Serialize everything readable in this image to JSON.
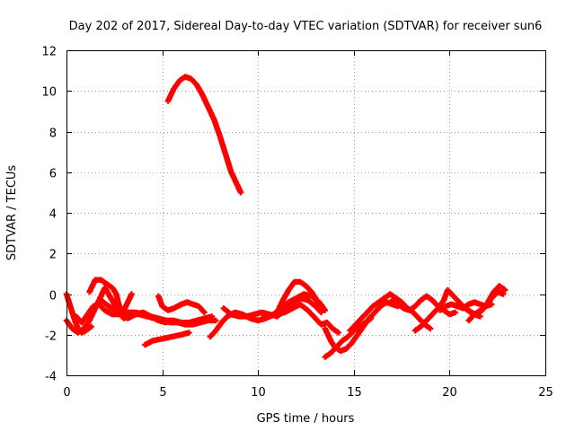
{
  "chart_data": {
    "type": "scatter",
    "title": "Day 202 of 2017, Sidereal Day-to-day VTEC variation (SDTVAR) for receiver sun6",
    "xlabel": "GPS time / hours",
    "ylabel": "SDTVAR / TECUs",
    "xlim": [
      0,
      25
    ],
    "ylim": [
      -4,
      12
    ],
    "xticks": [
      "0",
      "5",
      "10",
      "15",
      "20",
      "25"
    ],
    "yticks": [
      "-4",
      "-2",
      "0",
      "2",
      "4",
      "6",
      "8",
      "10",
      "12"
    ],
    "grid": true,
    "marker": "plus",
    "color": "#ff0000",
    "series": [
      {
        "name": "SDTVAR",
        "segments": [
          [
            [
              0.0,
              0.0
            ],
            [
              0.2,
              -0.6
            ],
            [
              0.4,
              -1.2
            ],
            [
              0.6,
              -1.7
            ],
            [
              0.8,
              -1.9
            ],
            [
              1.0,
              -1.8
            ],
            [
              1.3,
              -1.6
            ]
          ],
          [
            [
              0.0,
              -1.3
            ],
            [
              0.3,
              -1.7
            ],
            [
              0.6,
              -1.9
            ],
            [
              0.9,
              -1.7
            ],
            [
              1.2,
              -1.3
            ],
            [
              1.5,
              -0.7
            ],
            [
              1.8,
              -0.1
            ],
            [
              2.0,
              0.3
            ],
            [
              2.2,
              0.0
            ],
            [
              2.5,
              -0.5
            ],
            [
              2.8,
              -0.9
            ],
            [
              3.0,
              -0.8
            ],
            [
              3.2,
              -0.4
            ],
            [
              3.4,
              0.0
            ]
          ],
          [
            [
              0.5,
              -1.1
            ],
            [
              0.8,
              -1.4
            ],
            [
              1.1,
              -1.0
            ],
            [
              1.4,
              -0.6
            ],
            [
              1.7,
              -0.5
            ],
            [
              2.0,
              -0.8
            ],
            [
              2.4,
              -1.0
            ],
            [
              2.8,
              -1.0
            ],
            [
              3.2,
              -0.9
            ],
            [
              3.6,
              -0.9
            ],
            [
              4.0,
              -1.0
            ],
            [
              4.4,
              -1.1
            ],
            [
              4.8,
              -1.2
            ],
            [
              5.2,
              -1.3
            ],
            [
              5.6,
              -1.3
            ],
            [
              6.0,
              -1.4
            ],
            [
              6.4,
              -1.4
            ],
            [
              6.8,
              -1.3
            ],
            [
              7.2,
              -1.2
            ],
            [
              7.6,
              -1.1
            ]
          ],
          [
            [
              1.2,
              0.1
            ],
            [
              1.5,
              0.7
            ],
            [
              1.8,
              0.7
            ],
            [
              2.1,
              0.5
            ],
            [
              2.4,
              0.3
            ],
            [
              2.6,
              0.0
            ],
            [
              2.7,
              -0.4
            ],
            [
              2.9,
              -1.0
            ],
            [
              3.2,
              -1.2
            ],
            [
              3.6,
              -1.0
            ],
            [
              4.0,
              -0.9
            ],
            [
              4.4,
              -1.1
            ],
            [
              4.8,
              -1.3
            ],
            [
              5.2,
              -1.4
            ]
          ],
          [
            [
              1.8,
              -0.3
            ],
            [
              2.2,
              -0.6
            ],
            [
              2.6,
              -0.8
            ],
            [
              3.0,
              -1.2
            ],
            [
              3.4,
              -1.0
            ],
            [
              3.8,
              -1.0
            ],
            [
              4.2,
              -1.1
            ],
            [
              4.6,
              -1.2
            ],
            [
              5.0,
              -1.3
            ],
            [
              5.4,
              -1.4
            ],
            [
              5.8,
              -1.4
            ],
            [
              6.2,
              -1.5
            ],
            [
              6.6,
              -1.5
            ],
            [
              7.0,
              -1.4
            ],
            [
              7.4,
              -1.3
            ],
            [
              7.8,
              -1.3
            ]
          ],
          [
            [
              4.1,
              -2.5
            ],
            [
              4.5,
              -2.3
            ],
            [
              5.0,
              -2.2
            ],
            [
              5.5,
              -2.1
            ],
            [
              6.0,
              -2.0
            ],
            [
              6.4,
              -1.9
            ]
          ],
          [
            [
              4.8,
              -0.1
            ],
            [
              5.0,
              -0.6
            ],
            [
              5.3,
              -0.8
            ],
            [
              5.6,
              -0.7
            ],
            [
              6.0,
              -0.5
            ],
            [
              6.3,
              -0.4
            ],
            [
              6.6,
              -0.5
            ],
            [
              6.9,
              -0.6
            ],
            [
              7.2,
              -0.9
            ]
          ],
          [
            [
              5.3,
              9.5
            ],
            [
              5.6,
              10.1
            ],
            [
              5.9,
              10.5
            ],
            [
              6.2,
              10.7
            ],
            [
              6.5,
              10.6
            ],
            [
              6.8,
              10.3
            ],
            [
              7.1,
              9.8
            ],
            [
              7.4,
              9.2
            ],
            [
              7.7,
              8.6
            ],
            [
              8.0,
              7.8
            ],
            [
              8.3,
              6.9
            ],
            [
              8.6,
              6.0
            ],
            [
              8.8,
              5.6
            ],
            [
              9.0,
              5.2
            ],
            [
              9.1,
              5.0
            ]
          ],
          [
            [
              7.5,
              -2.1
            ],
            [
              7.8,
              -1.8
            ],
            [
              8.1,
              -1.4
            ],
            [
              8.4,
              -1.1
            ],
            [
              8.8,
              -0.9
            ],
            [
              9.2,
              -1.0
            ],
            [
              9.6,
              -1.2
            ],
            [
              10.0,
              -1.3
            ],
            [
              10.4,
              -1.2
            ],
            [
              10.8,
              -1.0
            ],
            [
              11.2,
              -0.7
            ],
            [
              11.6,
              -0.4
            ],
            [
              12.0,
              -0.2
            ],
            [
              12.4,
              0.0
            ],
            [
              12.8,
              -0.1
            ],
            [
              13.2,
              -0.4
            ],
            [
              13.5,
              -0.8
            ]
          ],
          [
            [
              8.2,
              -0.7
            ],
            [
              8.6,
              -1.0
            ],
            [
              9.0,
              -1.1
            ],
            [
              9.4,
              -1.1
            ],
            [
              9.8,
              -1.0
            ],
            [
              10.2,
              -0.9
            ],
            [
              10.6,
              -1.0
            ],
            [
              11.0,
              -1.1
            ],
            [
              11.4,
              -0.8
            ],
            [
              11.8,
              -0.4
            ],
            [
              12.2,
              -0.2
            ],
            [
              12.6,
              -0.3
            ],
            [
              13.0,
              -0.6
            ],
            [
              13.3,
              -0.9
            ]
          ],
          [
            [
              10.2,
              -1.2
            ],
            [
              10.6,
              -1.1
            ],
            [
              11.0,
              -1.0
            ],
            [
              11.4,
              -0.9
            ],
            [
              11.8,
              -0.7
            ],
            [
              12.2,
              -0.5
            ],
            [
              12.6,
              -0.8
            ],
            [
              13.0,
              -1.2
            ],
            [
              13.3,
              -1.5
            ],
            [
              13.6,
              -1.4
            ],
            [
              13.9,
              -1.7
            ],
            [
              14.2,
              -1.9
            ]
          ],
          [
            [
              11.0,
              -0.9
            ],
            [
              11.3,
              -0.3
            ],
            [
              11.6,
              0.2
            ],
            [
              11.9,
              0.6
            ],
            [
              12.2,
              0.6
            ],
            [
              12.5,
              0.4
            ],
            [
              12.8,
              0.1
            ],
            [
              13.0,
              -0.2
            ],
            [
              13.2,
              -0.6
            ]
          ],
          [
            [
              13.5,
              -1.7
            ],
            [
              13.8,
              -2.3
            ],
            [
              14.0,
              -2.6
            ],
            [
              14.3,
              -2.8
            ],
            [
              14.6,
              -2.7
            ],
            [
              14.9,
              -2.4
            ],
            [
              15.2,
              -2.0
            ],
            [
              15.5,
              -1.6
            ],
            [
              15.8,
              -1.2
            ],
            [
              16.1,
              -0.9
            ],
            [
              16.4,
              -0.6
            ],
            [
              16.7,
              -0.4
            ],
            [
              17.0,
              -0.5
            ],
            [
              17.3,
              -0.6
            ]
          ],
          [
            [
              13.5,
              -3.1
            ],
            [
              13.8,
              -2.9
            ],
            [
              14.1,
              -2.6
            ],
            [
              14.4,
              -2.3
            ],
            [
              14.7,
              -2.1
            ],
            [
              15.0,
              -1.8
            ],
            [
              15.3,
              -1.6
            ],
            [
              15.6,
              -1.4
            ],
            [
              15.9,
              -1.2
            ]
          ],
          [
            [
              14.8,
              -1.8
            ],
            [
              15.1,
              -1.5
            ],
            [
              15.4,
              -1.2
            ],
            [
              15.7,
              -0.9
            ],
            [
              16.0,
              -0.6
            ],
            [
              16.3,
              -0.4
            ],
            [
              16.6,
              -0.2
            ],
            [
              16.9,
              0.0
            ],
            [
              17.2,
              -0.2
            ],
            [
              17.5,
              -0.4
            ],
            [
              17.8,
              -0.7
            ],
            [
              18.1,
              -0.9
            ],
            [
              18.4,
              -1.2
            ],
            [
              18.7,
              -1.5
            ],
            [
              19.0,
              -1.7
            ]
          ],
          [
            [
              17.0,
              -0.3
            ],
            [
              17.3,
              -0.5
            ],
            [
              17.6,
              -0.7
            ],
            [
              17.9,
              -0.8
            ],
            [
              18.2,
              -0.6
            ],
            [
              18.5,
              -0.3
            ],
            [
              18.8,
              -0.1
            ],
            [
              19.1,
              -0.3
            ],
            [
              19.4,
              -0.6
            ],
            [
              19.7,
              -0.8
            ],
            [
              20.0,
              -1.0
            ],
            [
              20.3,
              -0.9
            ]
          ],
          [
            [
              18.2,
              -1.8
            ],
            [
              18.5,
              -1.6
            ],
            [
              18.8,
              -1.3
            ],
            [
              19.1,
              -1.0
            ],
            [
              19.4,
              -0.7
            ],
            [
              19.7,
              -0.3
            ],
            [
              19.9,
              0.2
            ],
            [
              20.1,
              0.0
            ],
            [
              20.4,
              -0.3
            ],
            [
              20.7,
              -0.6
            ],
            [
              21.0,
              -0.8
            ],
            [
              21.3,
              -1.0
            ],
            [
              21.6,
              -1.1
            ]
          ],
          [
            [
              19.5,
              -0.8
            ],
            [
              19.8,
              -0.6
            ],
            [
              20.1,
              -0.5
            ],
            [
              20.4,
              -0.6
            ],
            [
              20.7,
              -0.7
            ],
            [
              21.0,
              -0.5
            ],
            [
              21.3,
              -0.4
            ],
            [
              21.6,
              -0.5
            ],
            [
              21.9,
              -0.6
            ],
            [
              22.2,
              -0.5
            ]
          ],
          [
            [
              20.5,
              -0.4
            ],
            [
              20.8,
              -0.7
            ],
            [
              21.1,
              -0.9
            ],
            [
              21.4,
              -1.0
            ],
            [
              21.7,
              -0.8
            ],
            [
              22.0,
              -0.4
            ],
            [
              22.3,
              0.1
            ],
            [
              22.6,
              0.4
            ],
            [
              22.9,
              0.2
            ]
          ],
          [
            [
              21.0,
              -1.3
            ],
            [
              21.3,
              -1.0
            ],
            [
              21.6,
              -0.8
            ],
            [
              21.9,
              -0.6
            ],
            [
              22.2,
              -0.2
            ],
            [
              22.5,
              0.1
            ],
            [
              22.8,
              0.0
            ]
          ]
        ]
      }
    ]
  }
}
